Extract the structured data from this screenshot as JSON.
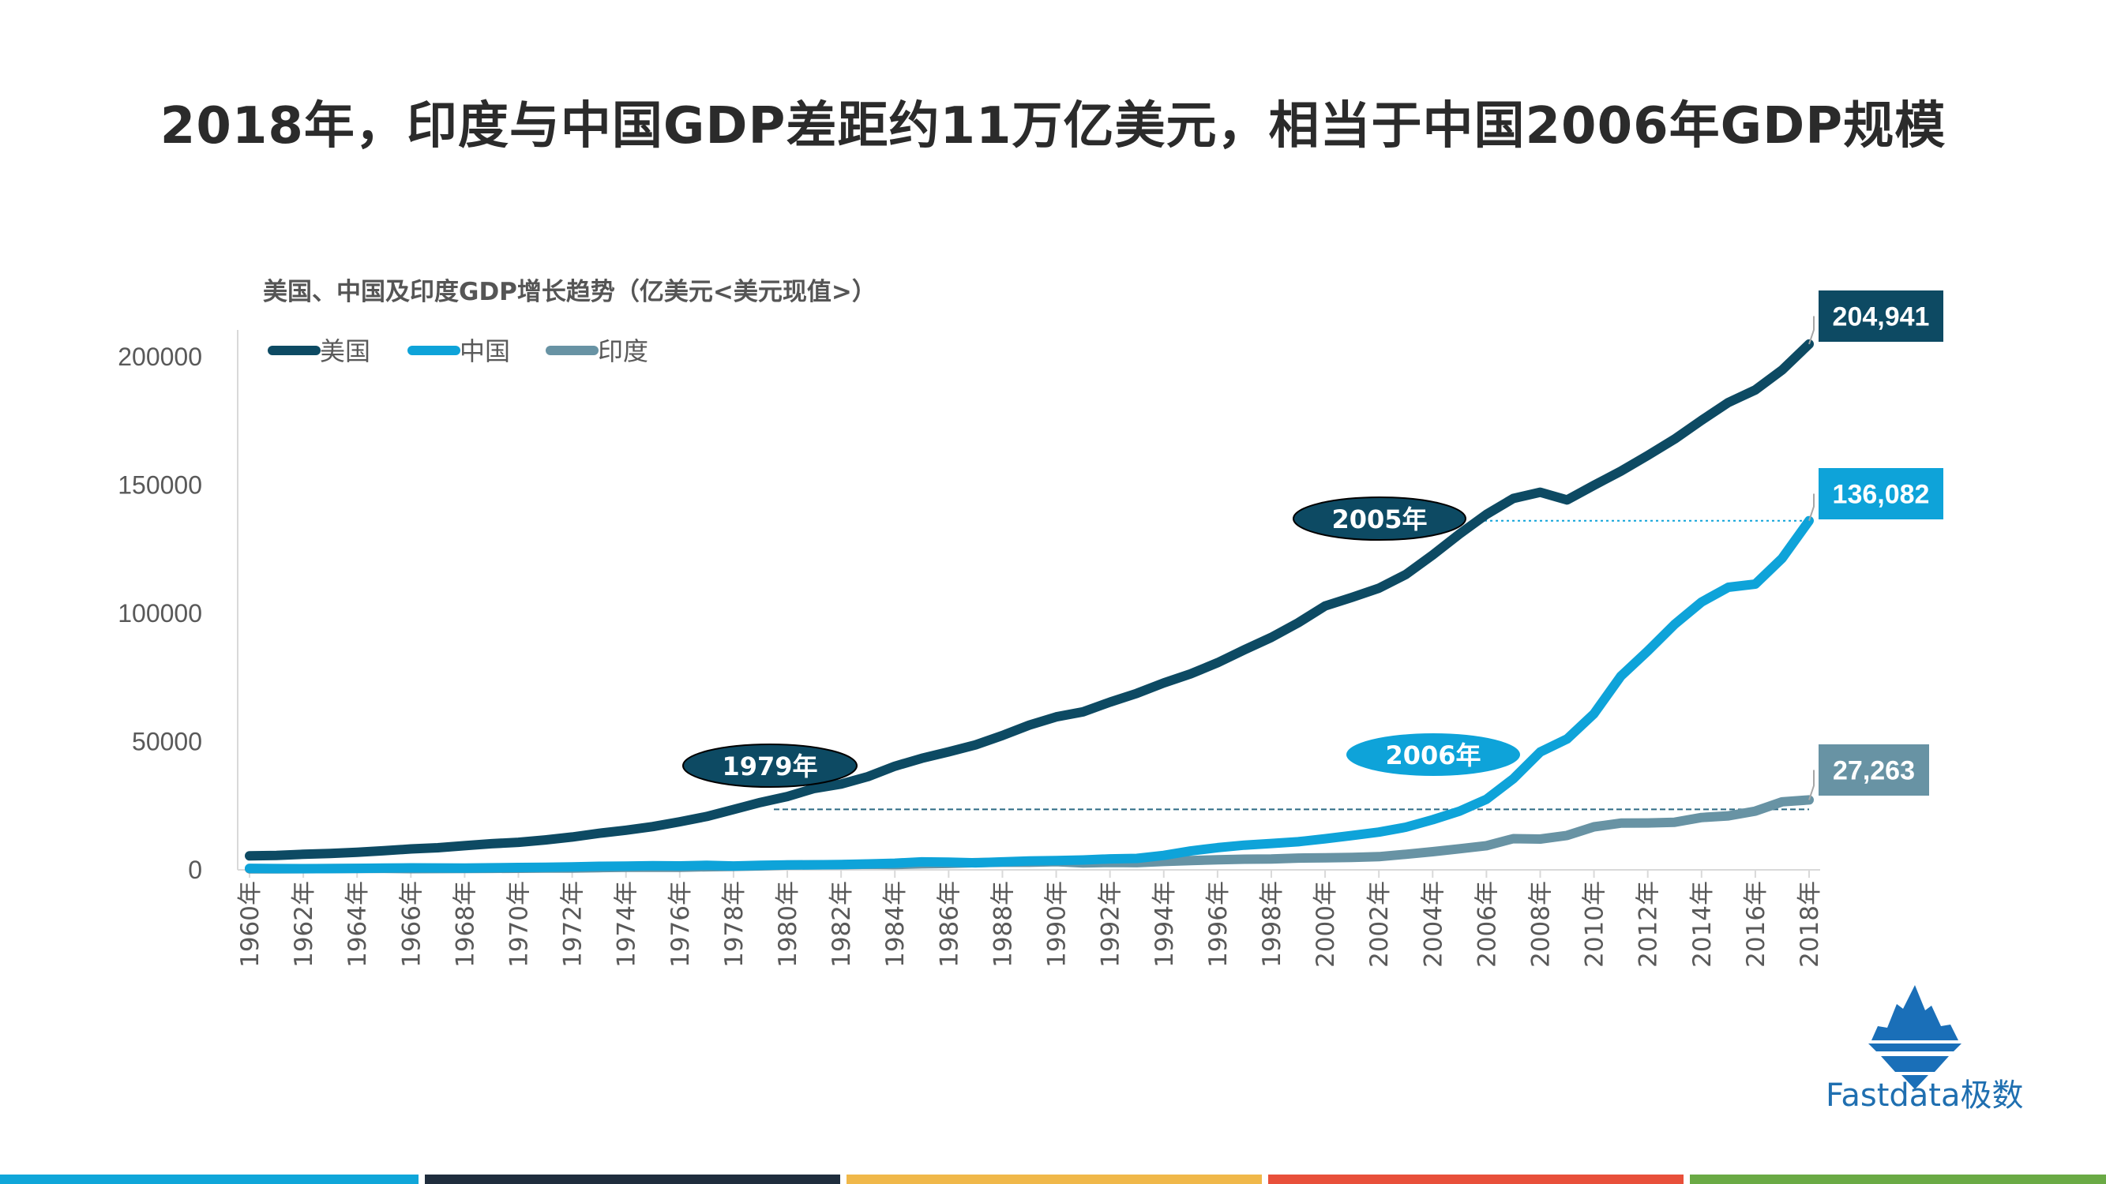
{
  "page_title": "2018年，印度与中国GDP差距约11万亿美元，相当于中国2006年GDP规模",
  "brand": {
    "name": "Fastdata极数"
  },
  "bottom_bar_colors": [
    "#10a6d9",
    "#1f2d3d",
    "#f0b84a",
    "#e8503a",
    "#6aaa45"
  ],
  "chart_data": {
    "type": "line",
    "title": "美国、中国及印度GDP增长趋势（亿美元<美元现值>）",
    "xlabel": "",
    "ylabel": "",
    "ylim": [
      0,
      210000
    ],
    "yticks": [
      0,
      50000,
      100000,
      150000,
      200000
    ],
    "ytick_labels": [
      "0",
      "50000",
      "100000",
      "150000",
      "200000"
    ],
    "grid": false,
    "legend_position": "top-left",
    "x": [
      "1960年",
      "1961年",
      "1962年",
      "1963年",
      "1964年",
      "1965年",
      "1966年",
      "1967年",
      "1968年",
      "1969年",
      "1970年",
      "1971年",
      "1972年",
      "1973年",
      "1974年",
      "1975年",
      "1976年",
      "1977年",
      "1978年",
      "1979年",
      "1980年",
      "1981年",
      "1982年",
      "1983年",
      "1984年",
      "1985年",
      "1986年",
      "1987年",
      "1988年",
      "1989年",
      "1990年",
      "1991年",
      "1992年",
      "1993年",
      "1994年",
      "1995年",
      "1996年",
      "1997年",
      "1998年",
      "1999年",
      "2000年",
      "2001年",
      "2002年",
      "2003年",
      "2004年",
      "2005年",
      "2006年",
      "2007年",
      "2008年",
      "2009年",
      "2010年",
      "2011年",
      "2012年",
      "2013年",
      "2014年",
      "2015年",
      "2016年",
      "2017年",
      "2018年"
    ],
    "xtick_labels": [
      "1960年",
      "1962年",
      "1964年",
      "1966年",
      "1968年",
      "1970年",
      "1972年",
      "1974年",
      "1976年",
      "1978年",
      "1980年",
      "1982年",
      "1984年",
      "1986年",
      "1988年",
      "1990年",
      "1992年",
      "1994年",
      "1996年",
      "1998年",
      "2000年",
      "2002年",
      "2004年",
      "2006年",
      "2008年",
      "2010年",
      "2012年",
      "2014年",
      "2016年",
      "2018年"
    ],
    "series": [
      {
        "name": "美国",
        "color": "#0d4a63",
        "values": [
          5433,
          5633,
          6051,
          6386,
          6858,
          7437,
          8150,
          8617,
          9425,
          10199,
          10734,
          11649,
          12794,
          14255,
          15452,
          16849,
          18733,
          20811,
          23511,
          26276,
          28575,
          31728,
          33432,
          36343,
          40408,
          43467,
          46000,
          48707,
          52365,
          56420,
          59631,
          61587,
          65397,
          68789,
          72873,
          76397,
          80732,
          85776,
          90630,
          96305,
          102848,
          106218,
          109775,
          115107,
          122749,
          130937,
          138559,
          144776,
          147186,
          144187,
          149921,
          155426,
          161553,
          167915,
          175217,
          182193,
          187072,
          194854,
          204941
        ]
      },
      {
        "name": "中国",
        "color": "#0ea3d9",
        "values": [
          597,
          500,
          472,
          507,
          593,
          704,
          767,
          727,
          707,
          797,
          926,
          998,
          1137,
          1385,
          1442,
          1634,
          1539,
          1749,
          1495,
          1783,
          1911,
          1958,
          2051,
          2303,
          2599,
          3094,
          3008,
          2729,
          3123,
          3478,
          3609,
          3834,
          4269,
          4447,
          5643,
          7340,
          8637,
          9616,
          10290,
          10940,
          12113,
          13393,
          14706,
          16600,
          19553,
          22860,
          27521,
          35500,
          45944,
          51017,
          60872,
          75515,
          85322,
          95704,
          104385,
          110155,
          111379,
          121434,
          136082
        ]
      },
      {
        "name": "印度",
        "color": "#6893a4",
        "values": [
          370,
          393,
          421,
          485,
          565,
          598,
          459,
          500,
          534,
          583,
          625,
          670,
          711,
          856,
          995,
          981,
          1001,
          1192,
          1355,
          1525,
          1863,
          1960,
          2011,
          2184,
          2092,
          2326,
          2485,
          2790,
          2967,
          2965,
          3209,
          2703,
          2883,
          2795,
          3272,
          3603,
          3928,
          4158,
          4213,
          4587,
          4683,
          4854,
          5149,
          6076,
          7091,
          8203,
          9402,
          12167,
          11989,
          13419,
          16756,
          18230,
          18276,
          18567,
          20391,
          21036,
          22900,
          26525,
          27263
        ]
      }
    ],
    "annotations": [
      {
        "label": "2005年",
        "style": "dark"
      },
      {
        "label": "1979年",
        "style": "dark"
      },
      {
        "label": "2006年",
        "style": "light"
      }
    ],
    "end_labels": [
      {
        "series": "美国",
        "text": "204,941",
        "color": "#0d4a63"
      },
      {
        "series": "中国",
        "text": "136,082",
        "color": "#0ea3d9"
      },
      {
        "series": "印度",
        "text": "27,263",
        "color": "#6893a4"
      }
    ]
  }
}
